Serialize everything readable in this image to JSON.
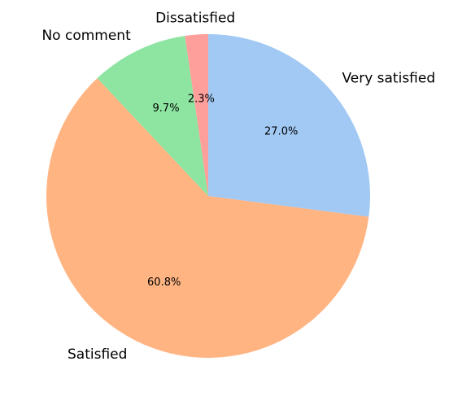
{
  "chart_data": {
    "type": "pie",
    "categories": [
      "Very satisfied",
      "Satisfied",
      "No comment",
      "Dissatisfied"
    ],
    "values": [
      27.0,
      60.8,
      9.7,
      2.3
    ],
    "value_labels": [
      "27.0%",
      "60.8%",
      "9.7%",
      "2.3%"
    ],
    "colors": [
      "#a1c9f4",
      "#ffb482",
      "#8de5a1",
      "#ff9f9b"
    ]
  }
}
